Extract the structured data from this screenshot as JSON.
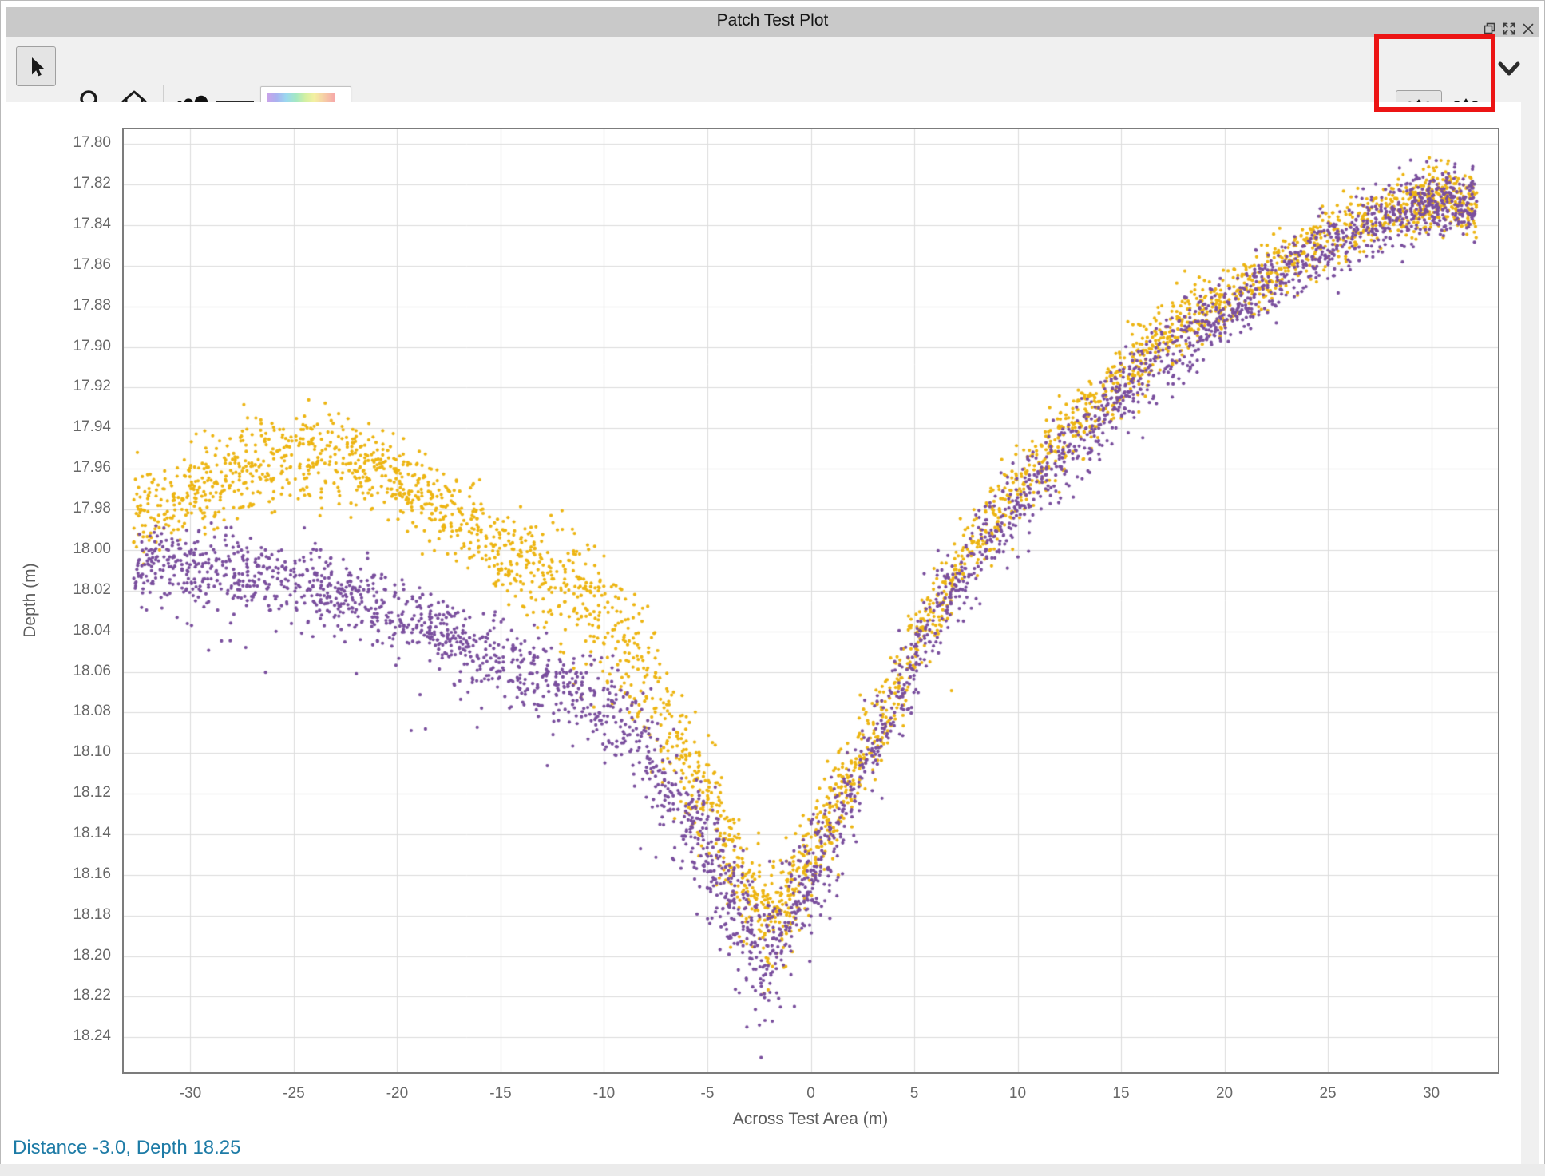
{
  "window": {
    "title": "Patch Test Plot",
    "controls": {
      "restore": "restore-window",
      "maximize": "maximize-window",
      "close": "close-window"
    }
  },
  "toolbar": {
    "left_tools": [
      "select-cursor",
      "zoom",
      "home",
      "point-size",
      "colormap",
      "colormap-dropdown"
    ],
    "right_tools": [
      "sonar-head-1-toggle",
      "sonar-head-2-toggle",
      "collapse-chevron"
    ],
    "selected_tool": "select-cursor",
    "sonar_head_1_active": true,
    "highlight_color": "#ec1414"
  },
  "statusbar": {
    "text": "Distance -3.0, Depth 18.25"
  },
  "chart_data": {
    "type": "scatter",
    "title": "",
    "xlabel": "Across Test Area (m)",
    "ylabel": "Depth (m)",
    "xlim": [
      -33.3,
      33.3
    ],
    "ylim": [
      17.792,
      18.258
    ],
    "y_inverted": true,
    "grid": true,
    "grid_color": "#dcdcdc",
    "xticks": [
      -30,
      -25,
      -20,
      -15,
      -10,
      -5,
      0,
      5,
      10,
      15,
      20,
      25,
      30
    ],
    "yticks": [
      17.8,
      17.82,
      17.84,
      17.86,
      17.88,
      17.9,
      17.92,
      17.94,
      17.96,
      17.98,
      18.0,
      18.02,
      18.04,
      18.06,
      18.08,
      18.1,
      18.12,
      18.14,
      18.16,
      18.18,
      18.2,
      18.22,
      18.24
    ],
    "x_data_range": [
      -32.6,
      32.1
    ],
    "column_step_m": 0.21,
    "point_radius_px": 2.1,
    "series": [
      {
        "name": "sonar-head-1-yellow",
        "color": "#edb512",
        "profile": [
          [
            -32.6,
            17.985
          ],
          [
            -31,
            17.978
          ],
          [
            -29,
            17.968
          ],
          [
            -27,
            17.958
          ],
          [
            -25,
            17.952
          ],
          [
            -23,
            17.952
          ],
          [
            -21,
            17.96
          ],
          [
            -19,
            17.972
          ],
          [
            -17,
            17.986
          ],
          [
            -15,
            18.0
          ],
          [
            -13,
            18.01
          ],
          [
            -11,
            18.022
          ],
          [
            -10,
            18.03
          ],
          [
            -9,
            18.044
          ],
          [
            -8,
            18.062
          ],
          [
            -7,
            18.084
          ],
          [
            -6,
            18.104
          ],
          [
            -5,
            18.124
          ],
          [
            -4,
            18.148
          ],
          [
            -3,
            18.168
          ],
          [
            -2.2,
            18.186
          ],
          [
            -1.4,
            18.176
          ],
          [
            -0.6,
            18.16
          ],
          [
            0.4,
            18.142
          ],
          [
            1.5,
            18.12
          ],
          [
            2.5,
            18.1
          ],
          [
            3.5,
            18.08
          ],
          [
            4.5,
            18.058
          ],
          [
            5.5,
            18.038
          ],
          [
            6.5,
            18.02
          ],
          [
            7.5,
            18.004
          ],
          [
            8.5,
            17.99
          ],
          [
            9.5,
            17.976
          ],
          [
            10.5,
            17.962
          ],
          [
            12,
            17.946
          ],
          [
            13.5,
            17.93
          ],
          [
            15,
            17.914
          ],
          [
            16.5,
            17.9
          ],
          [
            18,
            17.889
          ],
          [
            19.5,
            17.88
          ],
          [
            21,
            17.87
          ],
          [
            22.5,
            17.861
          ],
          [
            24,
            17.851
          ],
          [
            25.5,
            17.844
          ],
          [
            27,
            17.837
          ],
          [
            28.5,
            17.832
          ],
          [
            30,
            17.826
          ],
          [
            31,
            17.827
          ],
          [
            32.1,
            17.83
          ]
        ],
        "sigma": [
          [
            -32.6,
            0.011
          ],
          [
            -26,
            0.012
          ],
          [
            -20,
            0.01
          ],
          [
            -16,
            0.01
          ],
          [
            -13,
            0.014
          ],
          [
            -9,
            0.017
          ],
          [
            -6,
            0.013
          ],
          [
            -3,
            0.013
          ],
          [
            0,
            0.012
          ],
          [
            3,
            0.011
          ],
          [
            6,
            0.01
          ],
          [
            10,
            0.009
          ],
          [
            15,
            0.009
          ],
          [
            20,
            0.008
          ],
          [
            25,
            0.008
          ],
          [
            32.1,
            0.008
          ]
        ],
        "tails": [
          {
            "p": 0.05,
            "x0": -15,
            "x1": -6,
            "extra": 0.035
          },
          {
            "p": 0.04,
            "x0": -5,
            "x1": 1,
            "extra": 0.03
          }
        ]
      },
      {
        "name": "sonar-head-2-purple",
        "color": "#7a4f9e",
        "profile": [
          [
            -32.6,
            18.008
          ],
          [
            -30,
            18.008
          ],
          [
            -28,
            18.01
          ],
          [
            -26,
            18.013
          ],
          [
            -24,
            18.017
          ],
          [
            -22,
            18.023
          ],
          [
            -20,
            18.031
          ],
          [
            -18,
            18.041
          ],
          [
            -16,
            18.051
          ],
          [
            -14,
            18.06
          ],
          [
            -12,
            18.068
          ],
          [
            -11,
            18.072
          ],
          [
            -10,
            18.078
          ],
          [
            -9,
            18.087
          ],
          [
            -8,
            18.1
          ],
          [
            -7,
            18.116
          ],
          [
            -6,
            18.132
          ],
          [
            -5,
            18.15
          ],
          [
            -4,
            18.17
          ],
          [
            -3,
            18.189
          ],
          [
            -2.3,
            18.201
          ],
          [
            -1.5,
            18.19
          ],
          [
            -0.7,
            18.174
          ],
          [
            0.2,
            18.156
          ],
          [
            1.2,
            18.134
          ],
          [
            2.2,
            18.114
          ],
          [
            3.2,
            18.092
          ],
          [
            4.2,
            18.07
          ],
          [
            5.2,
            18.05
          ],
          [
            6.2,
            18.031
          ],
          [
            7.2,
            18.014
          ],
          [
            8.2,
            18.0
          ],
          [
            9.2,
            17.986
          ],
          [
            10.5,
            17.971
          ],
          [
            12,
            17.955
          ],
          [
            13.5,
            17.94
          ],
          [
            15,
            17.923
          ],
          [
            16.5,
            17.909
          ],
          [
            18,
            17.897
          ],
          [
            19.5,
            17.887
          ],
          [
            21,
            17.876
          ],
          [
            22.5,
            17.866
          ],
          [
            24,
            17.856
          ],
          [
            25.5,
            17.849
          ],
          [
            27,
            17.841
          ],
          [
            28.5,
            17.835
          ],
          [
            30,
            17.828
          ],
          [
            31,
            17.827
          ],
          [
            32.1,
            17.829
          ]
        ],
        "sigma": [
          [
            -32.6,
            0.01
          ],
          [
            -24,
            0.009
          ],
          [
            -18,
            0.009
          ],
          [
            -12,
            0.01
          ],
          [
            -8,
            0.012
          ],
          [
            -5,
            0.013
          ],
          [
            -2.5,
            0.015
          ],
          [
            0,
            0.013
          ],
          [
            3,
            0.011
          ],
          [
            6,
            0.01
          ],
          [
            10,
            0.009
          ],
          [
            15,
            0.009
          ],
          [
            20,
            0.008
          ],
          [
            25,
            0.008
          ],
          [
            32.1,
            0.008
          ]
        ],
        "tails": [
          {
            "p": 0.1,
            "x0": -6.5,
            "x1": 1.5,
            "extra": 0.045
          },
          {
            "p": 0.03,
            "x0": -31,
            "x1": -7,
            "extra": 0.05
          }
        ]
      }
    ]
  }
}
